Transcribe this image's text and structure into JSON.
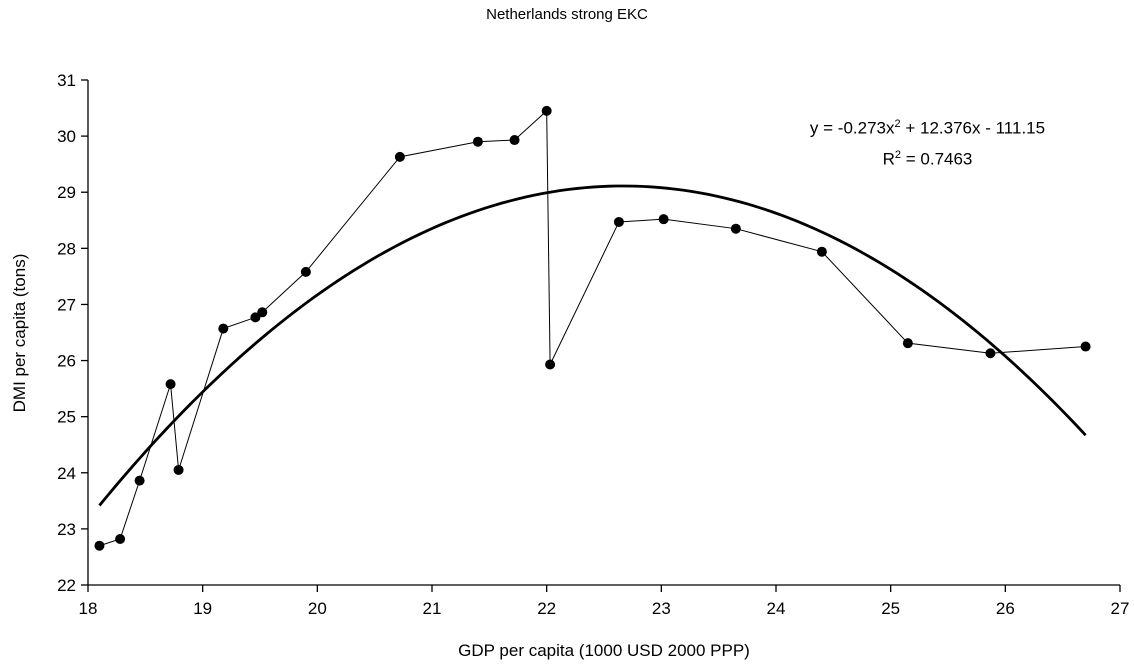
{
  "chart_data": {
    "type": "scatter",
    "title": "Netherlands strong EKC",
    "xlabel": "GDP per capita (1000 USD 2000 PPP)",
    "ylabel": "DMI per capita (tons)",
    "xlim": [
      18,
      27
    ],
    "ylim": [
      22,
      31
    ],
    "x_ticks": [
      "18",
      "19",
      "20",
      "21",
      "22",
      "23",
      "24",
      "25",
      "26",
      "27"
    ],
    "y_ticks": [
      "22",
      "23",
      "24",
      "25",
      "26",
      "27",
      "28",
      "29",
      "30",
      "31"
    ],
    "grid": false,
    "legend": "none",
    "series": [
      {
        "x": [
          18.1,
          18.28,
          18.45,
          18.72,
          18.79,
          19.18,
          19.46,
          19.52,
          19.9,
          20.72,
          21.4,
          21.72,
          22.0,
          22.03,
          22.63,
          23.02,
          23.65,
          24.4,
          25.15,
          25.87,
          26.7
        ],
        "y": [
          22.7,
          22.82,
          23.86,
          25.58,
          24.05,
          26.57,
          26.77,
          26.86,
          27.58,
          29.63,
          29.9,
          29.93,
          30.45,
          25.93,
          28.47,
          28.52,
          28.35,
          27.94,
          26.31,
          26.13,
          26.25
        ],
        "color": "#000000"
      }
    ],
    "trendline": {
      "type": "polynomial",
      "order": 2,
      "coefficients": [
        -0.273,
        12.376,
        -111.15
      ],
      "x_range": [
        18.1,
        26.7
      ],
      "equation_text": "y = -0.273x",
      "equation_exp": "2",
      "equation_rest": " + 12.376x - 111.15",
      "r2_text": "R",
      "r2_exp": "2",
      "r2_rest": " = 0.7463",
      "color": "#000000"
    }
  }
}
